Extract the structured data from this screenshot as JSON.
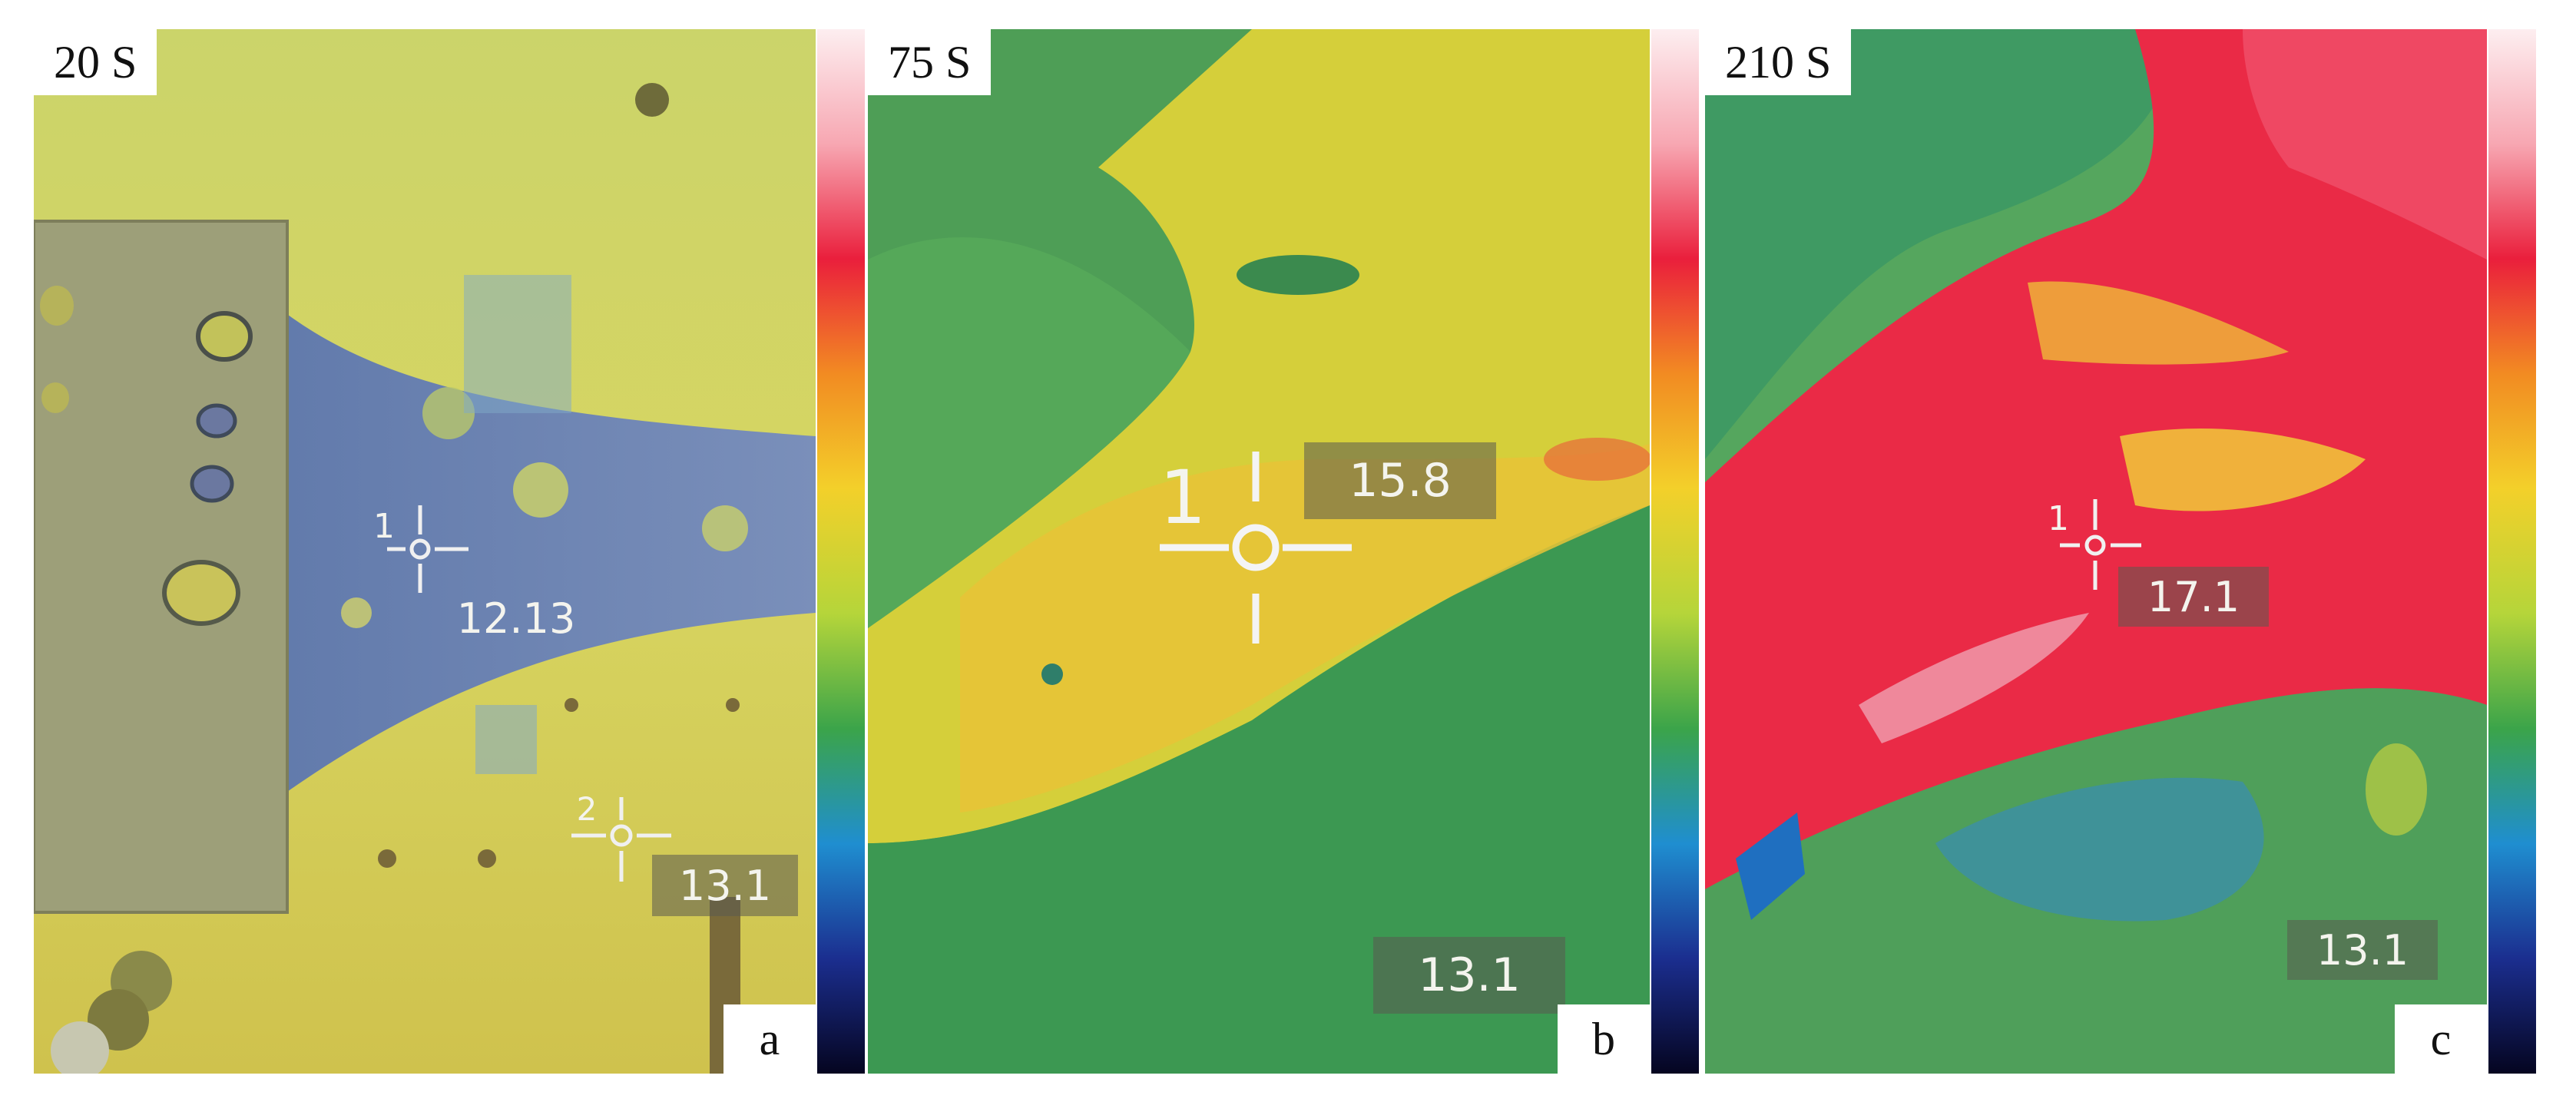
{
  "panels": [
    {
      "time": "20 S",
      "letter": "a",
      "readouts": [
        "12.13",
        "13.1"
      ],
      "marker_ids": [
        "1",
        "2"
      ]
    },
    {
      "time": "75 S",
      "letter": "b",
      "readouts": [
        "15.8",
        "13.1"
      ],
      "marker_ids": [
        "1"
      ]
    },
    {
      "time": "210 S",
      "letter": "c",
      "readouts": [
        "17.1",
        "13.1"
      ],
      "marker_ids": [
        "1"
      ]
    }
  ],
  "colors": {
    "colorbar_stops": [
      "#fdeef0",
      "#f7a7b2",
      "#ea1f3c",
      "#f28b22",
      "#f3d02a",
      "#b5d53a",
      "#3ba44a",
      "#1f8ed0",
      "#1b2e8f",
      "#050520"
    ],
    "yellow_bg": "#d6d35a",
    "blue_tape": "#6f86b5",
    "grey_block": "#9a9c78",
    "green_field": "#3f9a52",
    "yellow_hot": "#e9d23a",
    "red_hot": "#ec2a45"
  }
}
